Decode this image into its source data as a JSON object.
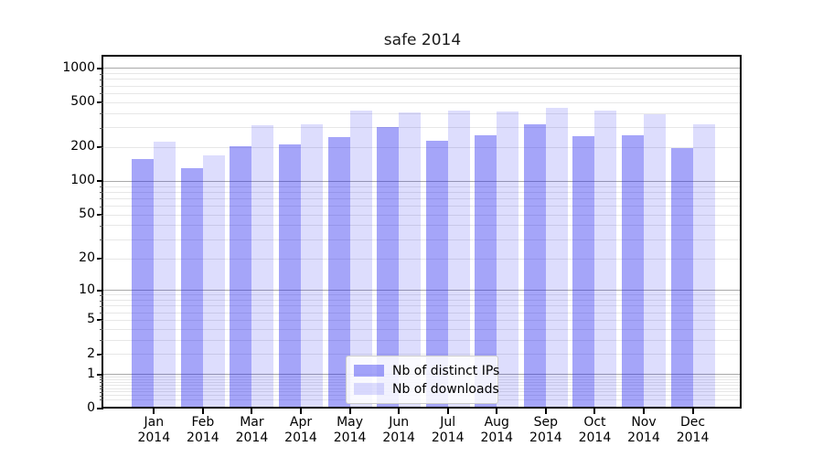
{
  "title": "safe 2014",
  "chart_data": {
    "type": "bar",
    "title": "safe 2014",
    "categories": [
      "Jan",
      "Feb",
      "Mar",
      "Apr",
      "May",
      "Jun",
      "Jul",
      "Aug",
      "Sep",
      "Oct",
      "Nov",
      "Dec"
    ],
    "year_label": "2014",
    "series": [
      {
        "name": "Nb of distinct IPs",
        "color": "rgba(30,30,240,0.40)",
        "values": [
          157,
          130,
          204,
          214,
          246,
          302,
          228,
          255,
          321,
          253,
          258,
          198
        ]
      },
      {
        "name": "Nb of downloads",
        "color": "rgba(30,30,240,0.15)",
        "values": [
          224,
          170,
          312,
          321,
          425,
          407,
          424,
          420,
          449,
          425,
          392,
          318
        ]
      }
    ],
    "xlabel": "",
    "ylabel": "",
    "y_scale": "log10(1+y)",
    "ylim": [
      0,
      1270
    ],
    "y_ticks": [
      0,
      1,
      2,
      5,
      10,
      20,
      50,
      100,
      200,
      500,
      1000
    ],
    "y_major_gridlines": [
      1,
      10,
      100,
      1000
    ],
    "grid": "on",
    "legend_position": "lower center",
    "colors": {
      "grid_major": "#a9a9a9",
      "grid_minor": "#e7e7e7",
      "axis": "#000000",
      "legend_border": "#cccccc"
    }
  }
}
